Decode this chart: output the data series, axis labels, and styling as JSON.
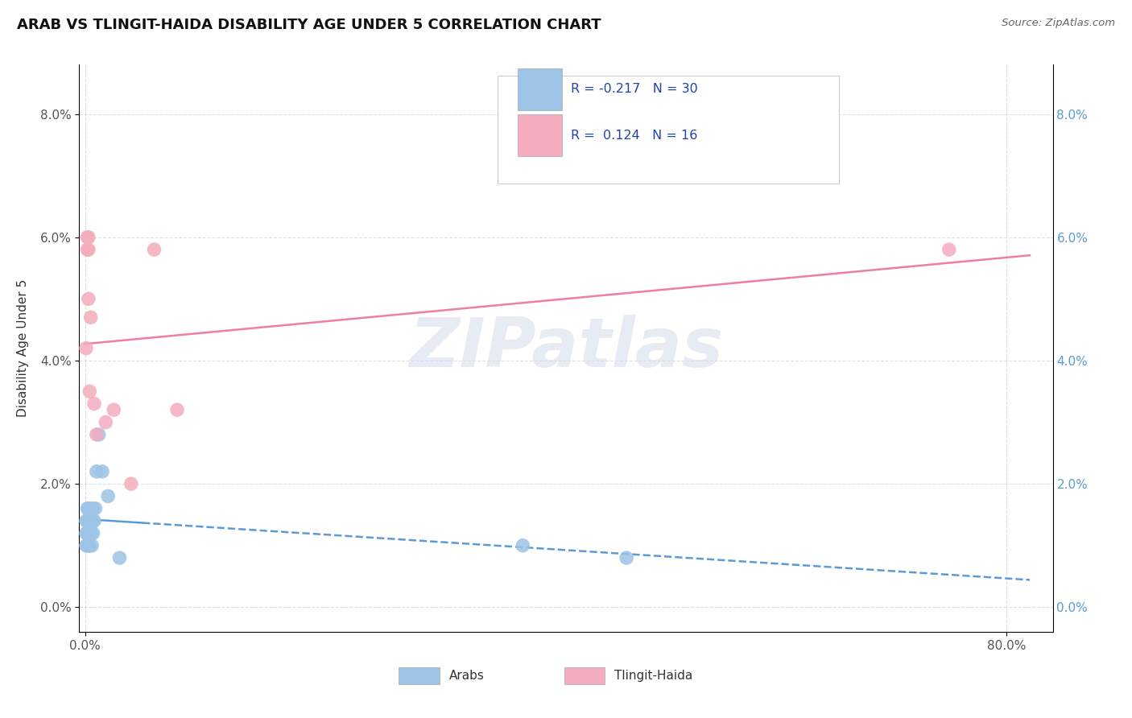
{
  "title": "ARAB VS TLINGIT-HAIDA DISABILITY AGE UNDER 5 CORRELATION CHART",
  "source": "Source: ZipAtlas.com",
  "ylabel": "Disability Age Under 5",
  "xlim": [
    -0.005,
    0.84
  ],
  "ylim": [
    -0.004,
    0.088
  ],
  "xticks": [
    0.0,
    0.8
  ],
  "yticks": [
    0.0,
    0.02,
    0.04,
    0.06,
    0.08
  ],
  "arab_color": "#5b9bd5",
  "arab_scatter_color": "#9dc3e6",
  "tlingit_color": "#f07ea0",
  "tlingit_scatter_color": "#f4acbe",
  "arab_R": "-0.217",
  "arab_N": "30",
  "tlingit_R": "0.124",
  "tlingit_N": "16",
  "watermark_text": "ZIPatlas",
  "background_color": "#ffffff",
  "grid_color": "#cccccc",
  "arab_x": [
    0.001,
    0.001,
    0.001,
    0.002,
    0.002,
    0.002,
    0.002,
    0.003,
    0.003,
    0.003,
    0.003,
    0.004,
    0.004,
    0.004,
    0.005,
    0.005,
    0.005,
    0.006,
    0.006,
    0.007,
    0.007,
    0.008,
    0.009,
    0.01,
    0.012,
    0.015,
    0.02,
    0.03,
    0.38,
    0.47
  ],
  "arab_y": [
    0.01,
    0.012,
    0.014,
    0.01,
    0.012,
    0.014,
    0.016,
    0.01,
    0.012,
    0.014,
    0.016,
    0.01,
    0.012,
    0.014,
    0.012,
    0.014,
    0.016,
    0.01,
    0.014,
    0.012,
    0.016,
    0.014,
    0.016,
    0.022,
    0.028,
    0.022,
    0.018,
    0.008,
    0.01,
    0.008
  ],
  "tlingit_x": [
    0.001,
    0.002,
    0.003,
    0.003,
    0.004,
    0.005,
    0.008,
    0.01,
    0.018,
    0.025,
    0.04,
    0.06,
    0.08,
    0.75,
    0.002,
    0.003
  ],
  "tlingit_y": [
    0.042,
    0.06,
    0.058,
    0.06,
    0.035,
    0.047,
    0.033,
    0.028,
    0.03,
    0.032,
    0.02,
    0.058,
    0.032,
    0.058,
    0.058,
    0.05
  ]
}
